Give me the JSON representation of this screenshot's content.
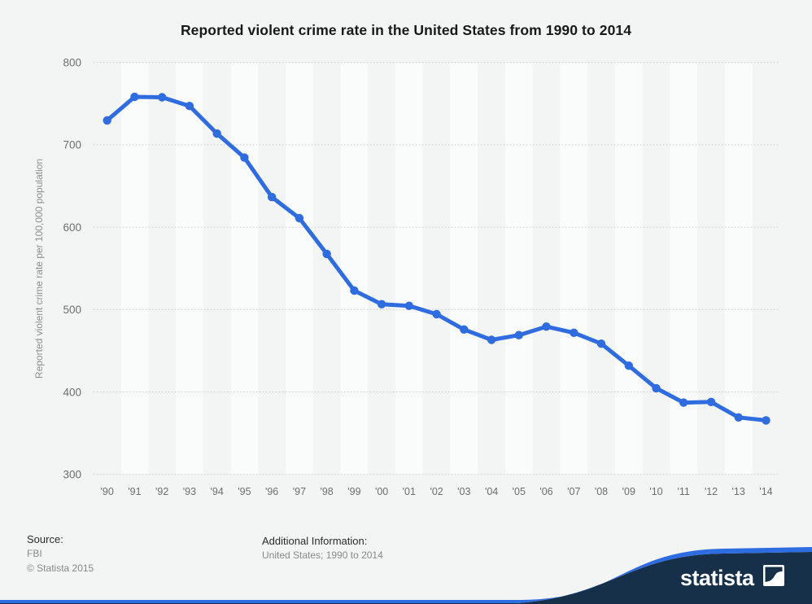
{
  "title": "Reported violent crime rate in the United States from 1990 to 2014",
  "chart_data": {
    "type": "line",
    "title": "Reported violent crime rate in the United States from 1990 to 2014",
    "x": [
      "'90",
      "'91",
      "'92",
      "'93",
      "'94",
      "'95",
      "'96",
      "'97",
      "'98",
      "'99",
      "'00",
      "'01",
      "'02",
      "'03",
      "'04",
      "'05",
      "'06",
      "'07",
      "'08",
      "'09",
      "'10",
      "'11",
      "'12",
      "'13",
      "'14"
    ],
    "series": [
      {
        "name": "Reported violent crime rate",
        "values": [
          729.6,
          758.2,
          757.7,
          747.1,
          713.6,
          684.5,
          636.6,
          611.0,
          567.6,
          523.0,
          506.5,
          504.5,
          494.4,
          475.8,
          463.2,
          469.0,
          479.3,
          471.8,
          458.6,
          431.9,
          404.5,
          387.1,
          387.8,
          369.1,
          365.5
        ]
      }
    ],
    "xlabel": "",
    "ylabel": "Reported violent crime rate per 100,000 population",
    "ylim": [
      300,
      800
    ],
    "yticks": [
      300,
      400,
      500,
      600,
      700,
      800
    ],
    "grid": "horizontal-dotted",
    "legend": "none",
    "banding": "alternating-vertical-year-bands"
  },
  "footer": {
    "source_label": "Source:",
    "source_value": "FBI",
    "copyright": "© Statista 2015",
    "additional_label": "Additional Information:",
    "additional_value": "United States; 1990 to 2014"
  },
  "branding": {
    "logo_text": "statista"
  },
  "colors": {
    "background": "#f3f4f4",
    "band_light": "#fafbfb",
    "grid": "#c9c9c9",
    "line": "#2f6cdf",
    "tick_text": "#6e6e6e",
    "axis_label_text": "#8f8f8f",
    "title_text": "#191919",
    "wave_blue": "#2e6ce2",
    "wave_navy": "#16304a",
    "logo_white": "#ffffff"
  }
}
